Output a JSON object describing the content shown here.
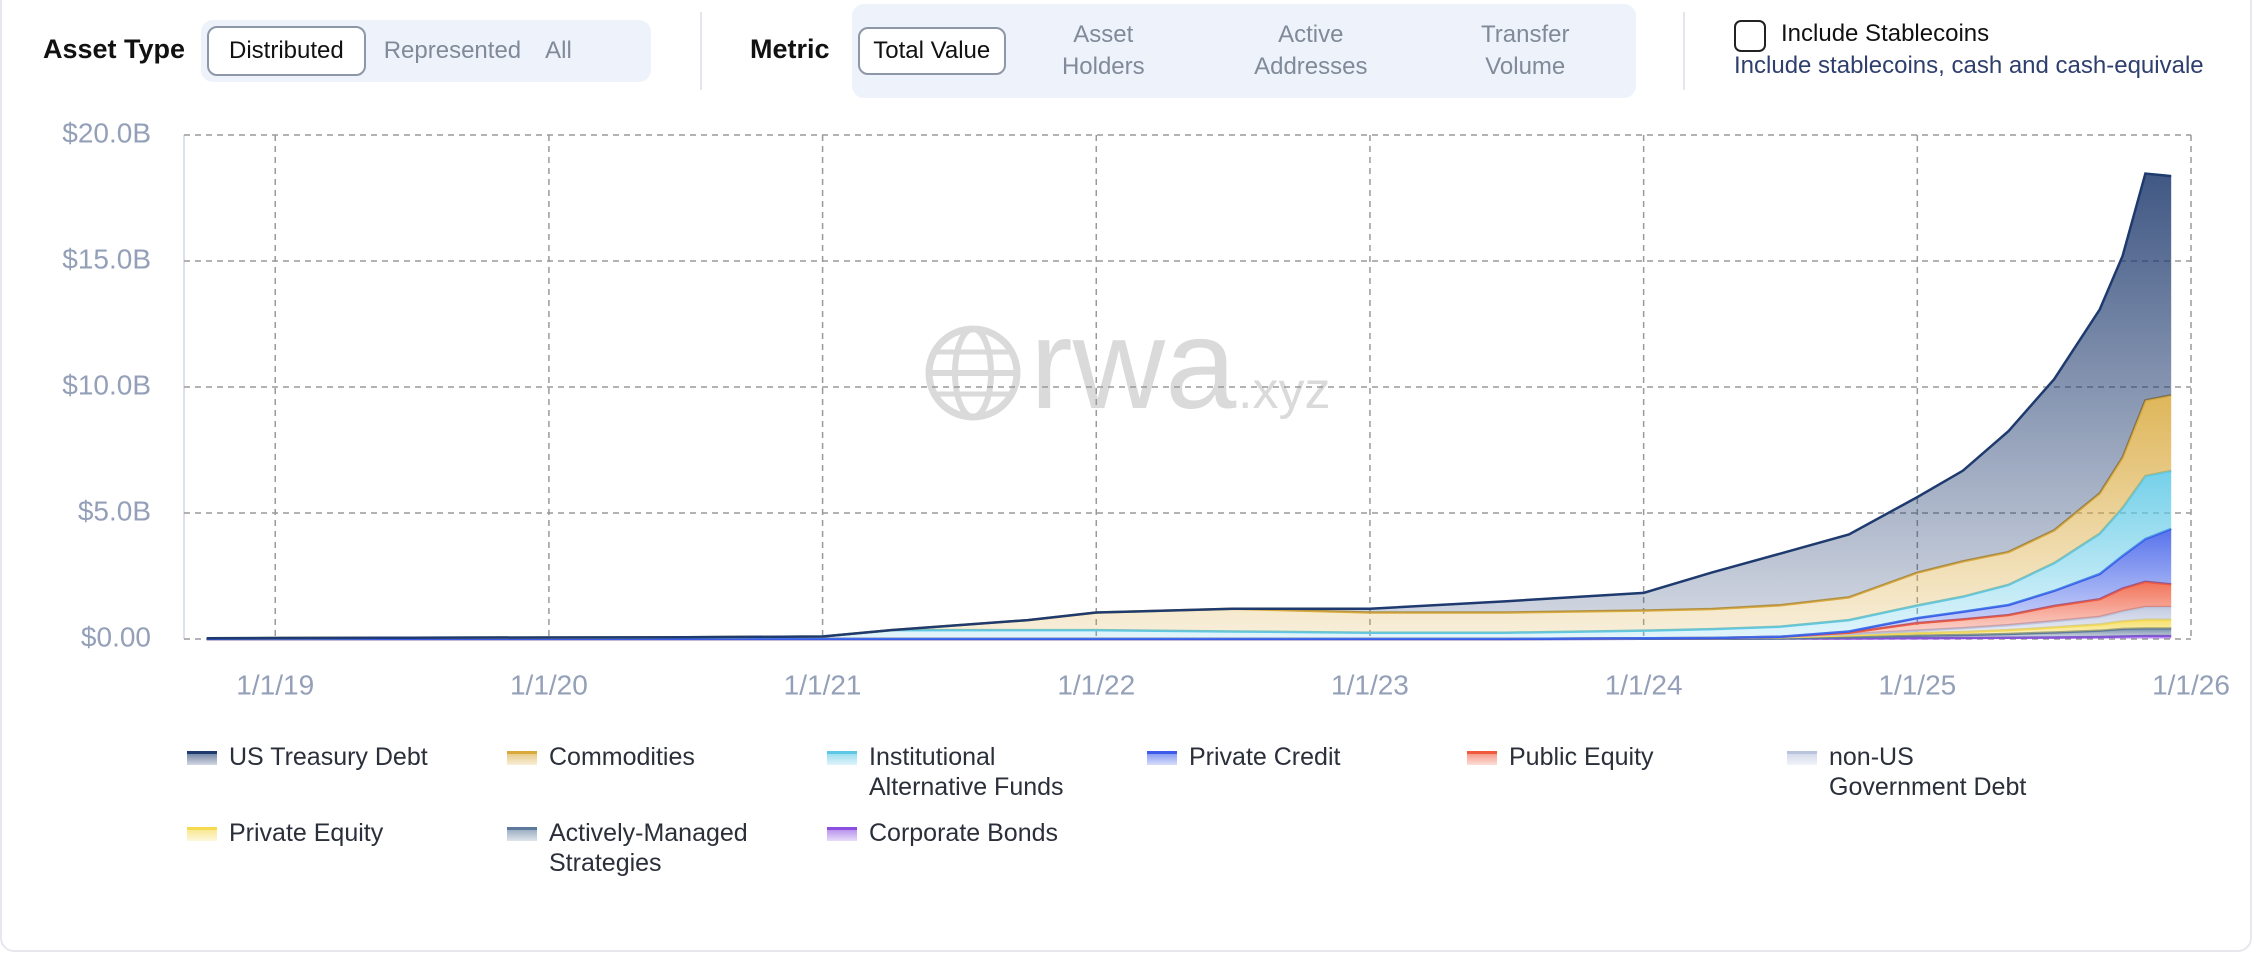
{
  "controls": {
    "asset_type": {
      "label": "Asset Type",
      "options": [
        "Distributed",
        "Represented",
        "All"
      ]
    },
    "metric": {
      "label": "Metric",
      "options": [
        "Total Value",
        "Asset Holders",
        "Active Addresses",
        "Transfer Volume"
      ]
    },
    "stablecoins": {
      "label": "Include Stablecoins",
      "description": "Include stablecoins, cash and cash-equivale"
    }
  },
  "watermark": {
    "main": "rwa",
    "suffix": ".xyz"
  },
  "chart_data": {
    "type": "stacked_area",
    "x": [
      "10/1/18",
      "1/1/19",
      "7/1/19",
      "1/1/20",
      "7/1/20",
      "1/1/21",
      "4/1/21",
      "10/1/21",
      "1/1/22",
      "7/1/22",
      "1/1/23",
      "7/1/23",
      "1/1/24",
      "4/1/24",
      "7/1/24",
      "10/1/24",
      "1/1/25",
      "3/1/25",
      "5/1/25",
      "7/1/25",
      "9/1/25",
      "10/1/25",
      "11/1/25",
      "12/5/25"
    ],
    "xlim": [
      "9/1/18",
      "1/1/26"
    ],
    "xticks": [
      "1/1/19",
      "1/1/20",
      "1/1/21",
      "1/1/22",
      "1/1/23",
      "1/1/24",
      "1/1/25",
      "1/1/26"
    ],
    "ylim": [
      0,
      20
    ],
    "yticks": [
      {
        "value": 0,
        "label": "$0.00"
      },
      {
        "value": 5,
        "label": "$5.0B"
      },
      {
        "value": 10,
        "label": "$10.0B"
      },
      {
        "value": 15,
        "label": "$15.0B"
      },
      {
        "value": 20,
        "label": "$20.0B"
      }
    ],
    "grid": true,
    "series": [
      {
        "name": "US Treasury Debt",
        "color": "#1e3a6e",
        "values": [
          0,
          0,
          0,
          0,
          0,
          0,
          0,
          0,
          0,
          0,
          0.15,
          0.45,
          0.7,
          1.45,
          2.05,
          2.5,
          3.0,
          3.6,
          4.8,
          6.0,
          7.3,
          8.0,
          9.0,
          8.7
        ]
      },
      {
        "name": "Commodities",
        "color": "#d9a93c",
        "values": [
          0,
          0,
          0,
          0,
          0,
          0,
          0,
          0.4,
          0.7,
          0.9,
          0.8,
          0.8,
          0.8,
          0.8,
          0.85,
          0.9,
          1.3,
          1.4,
          1.3,
          1.3,
          1.6,
          2.0,
          3.0,
          3.0
        ]
      },
      {
        "name": "Institutional Alternative Funds",
        "color": "#5cc8e6",
        "values": [
          0.03,
          0.04,
          0.05,
          0.06,
          0.07,
          0.1,
          0.35,
          0.35,
          0.35,
          0.3,
          0.25,
          0.25,
          0.3,
          0.35,
          0.4,
          0.45,
          0.5,
          0.6,
          0.8,
          1.1,
          1.6,
          1.9,
          2.5,
          2.3
        ]
      },
      {
        "name": "Private Credit",
        "color": "#3b5be8",
        "values": [
          0,
          0,
          0,
          0,
          0,
          0,
          0,
          0,
          0,
          0,
          0,
          0,
          0,
          0,
          0,
          0.05,
          0.2,
          0.3,
          0.4,
          0.6,
          1.0,
          1.3,
          1.7,
          2.2
        ]
      },
      {
        "name": "Public Equity",
        "color": "#ef5a3c",
        "values": [
          0,
          0,
          0,
          0,
          0,
          0,
          0,
          0,
          0,
          0,
          0,
          0,
          0,
          0,
          0,
          0.05,
          0.3,
          0.35,
          0.4,
          0.6,
          0.7,
          0.9,
          1.0,
          0.9
        ]
      },
      {
        "name": "non-US Government Debt",
        "color": "#b9c3dd",
        "values": [
          0,
          0,
          0,
          0,
          0,
          0,
          0,
          0,
          0,
          0,
          0,
          0,
          0,
          0,
          0.02,
          0.05,
          0.1,
          0.15,
          0.2,
          0.25,
          0.3,
          0.4,
          0.5,
          0.5
        ]
      },
      {
        "name": "Private Equity",
        "color": "#f5d94e",
        "values": [
          0,
          0,
          0,
          0,
          0,
          0,
          0,
          0,
          0,
          0,
          0,
          0,
          0.02,
          0.03,
          0.05,
          0.08,
          0.1,
          0.12,
          0.15,
          0.2,
          0.25,
          0.3,
          0.35,
          0.35
        ]
      },
      {
        "name": "Actively-Managed Strategies",
        "color": "#5d7a9c",
        "values": [
          0,
          0,
          0,
          0,
          0,
          0,
          0,
          0,
          0,
          0,
          0,
          0,
          0,
          0,
          0,
          0.05,
          0.1,
          0.12,
          0.15,
          0.2,
          0.25,
          0.3,
          0.3,
          0.3
        ]
      },
      {
        "name": "Corporate Bonds",
        "color": "#8b4fe0",
        "values": [
          0,
          0,
          0,
          0,
          0,
          0,
          0,
          0,
          0,
          0,
          0,
          0,
          0.01,
          0.01,
          0.02,
          0.02,
          0.03,
          0.04,
          0.05,
          0.06,
          0.08,
          0.1,
          0.12,
          0.12
        ]
      }
    ]
  }
}
